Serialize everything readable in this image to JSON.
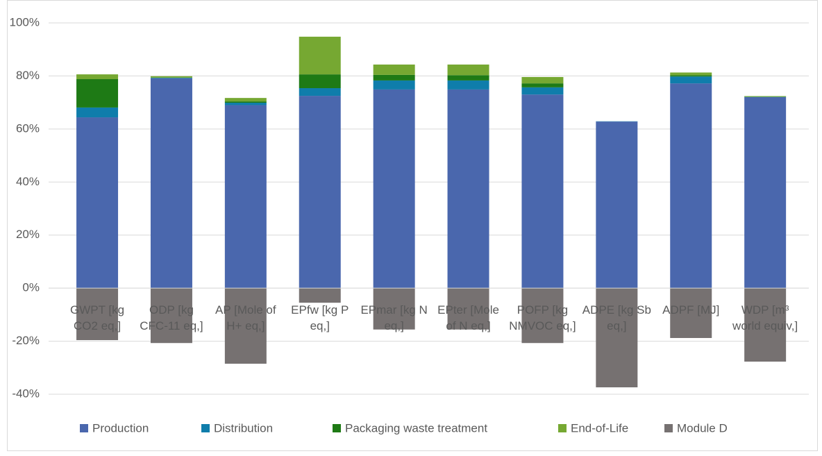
{
  "chart_data": {
    "type": "bar",
    "stacked": true,
    "categories": [
      "GWPT [kg CO2 eq,]",
      "ODP [kg CFC-11 eq,]",
      "AP [Mole of H+ eq,]",
      "EPfw [kg P eq,]",
      "EPmar [kg N eq,]",
      "EPter [Mole of N eq,]",
      "POFP [kg NMVOC eq,]",
      "ADPE [kg Sb eq,]",
      "ADPF [MJ]",
      "WDP [m³ world equiv,]"
    ],
    "series": [
      {
        "name": "Production",
        "color": "#4a67ad",
        "values": [
          64.4,
          79.1,
          69.0,
          72.5,
          74.9,
          74.9,
          73.0,
          62.8,
          77.2,
          72.0
        ]
      },
      {
        "name": "Distribution",
        "color": "#0f7dab",
        "values": [
          3.7,
          0.2,
          0.9,
          2.9,
          3.4,
          3.4,
          2.7,
          0.1,
          2.6,
          0.1
        ]
      },
      {
        "name": "Packaging waste treatment",
        "color": "#1e7a15",
        "values": [
          10.7,
          0.1,
          0.5,
          5.2,
          2.1,
          2.0,
          1.5,
          0.0,
          0.5,
          0.0
        ]
      },
      {
        "name": "End-of-Life",
        "color": "#76a832",
        "values": [
          1.8,
          0.5,
          1.3,
          14.2,
          3.9,
          4.0,
          2.4,
          0.0,
          1.0,
          0.3
        ]
      },
      {
        "name": "Module D",
        "color": "#767171",
        "values": [
          -19.6,
          -20.7,
          -28.5,
          -5.5,
          -15.6,
          -15.6,
          -20.7,
          -37.4,
          -18.8,
          -27.7
        ]
      }
    ],
    "ylim": [
      -40,
      100
    ],
    "yticks": [
      {
        "value": -40,
        "label": "-40%"
      },
      {
        "value": -20,
        "label": "-20%"
      },
      {
        "value": 0,
        "label": "0%"
      },
      {
        "value": 20,
        "label": "20%"
      },
      {
        "value": 40,
        "label": "40%"
      },
      {
        "value": 60,
        "label": "60%"
      },
      {
        "value": 80,
        "label": "80%"
      },
      {
        "value": 100,
        "label": "100%"
      }
    ],
    "grid": true,
    "legend": "bottom"
  }
}
